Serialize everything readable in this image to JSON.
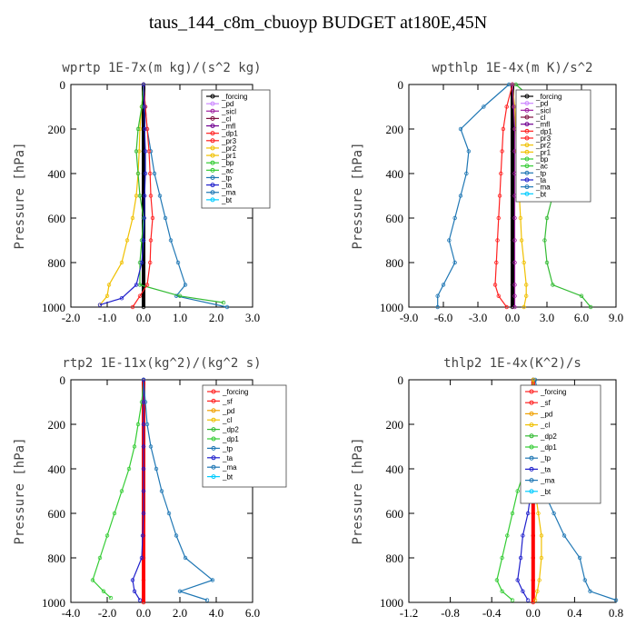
{
  "title": "taus_144_c8m_cbuoyp  BUDGET at180E,45N",
  "chart_data": [
    {
      "type": "line",
      "title": "wprtp  1E-7x(m kg)/(s^2 kg)",
      "ylabel": "Pressure [hPa]",
      "xlim": [
        -2.0,
        3.0
      ],
      "xticks": [
        "-2.0",
        "-1.0",
        "0.0",
        "1.0",
        "2.0",
        "3.0"
      ],
      "ylim": [
        1000,
        0
      ],
      "yticks": [
        "0",
        "200",
        "400",
        "600",
        "800",
        "1000"
      ],
      "legend": [
        "_forcing",
        "_pd",
        "_sicl",
        "_cl",
        "_mfl",
        "_dp1",
        "_pr3",
        "_pr2",
        "_pr1",
        "_bp",
        "_ac",
        "_tp",
        "_ta",
        "_ma",
        "_bt"
      ],
      "series": [
        {
          "name": "_forcing",
          "color": "#000000",
          "x": [
            0,
            0,
            0,
            0,
            0,
            0,
            0,
            0,
            0,
            0,
            0
          ],
          "y": [
            0,
            100,
            200,
            300,
            400,
            500,
            600,
            700,
            800,
            900,
            1000
          ]
        },
        {
          "name": "_pr1",
          "color": "#f0c000",
          "x": [
            0,
            -0.05,
            -0.1,
            -0.12,
            -0.15,
            -0.2,
            -0.3,
            -0.45,
            -0.6,
            -0.95,
            -1.0,
            -1.2
          ],
          "y": [
            0,
            100,
            200,
            300,
            400,
            500,
            600,
            700,
            800,
            900,
            950,
            990
          ]
        },
        {
          "name": "_tp",
          "color": "#1f77b4",
          "x": [
            0,
            0.05,
            0.1,
            0.2,
            0.3,
            0.45,
            0.6,
            0.75,
            0.95,
            1.15,
            0.9,
            2.3
          ],
          "y": [
            0,
            100,
            200,
            300,
            400,
            500,
            600,
            700,
            800,
            900,
            950,
            1000
          ]
        },
        {
          "name": "_ac",
          "color": "#33bb33",
          "x": [
            0,
            -0.05,
            -0.15,
            -0.2,
            -0.15,
            -0.1,
            0,
            -0.05,
            -0.1,
            -0.1,
            1.0,
            2.2
          ],
          "y": [
            0,
            100,
            200,
            300,
            400,
            500,
            600,
            700,
            800,
            900,
            950,
            980
          ]
        },
        {
          "name": "_pr3",
          "color": "#ff2020",
          "x": [
            0,
            0.05,
            0.1,
            0.15,
            0.18,
            0.2,
            0.25,
            0.2,
            0.18,
            0.1,
            -0.1,
            -0.3
          ],
          "y": [
            0,
            100,
            200,
            300,
            400,
            500,
            600,
            700,
            800,
            900,
            950,
            1000
          ]
        },
        {
          "name": "_ta",
          "color": "#2020cc",
          "x": [
            0,
            0.02,
            0.03,
            0.05,
            0.05,
            0.03,
            0.02,
            0,
            -0.05,
            -0.2,
            -0.6,
            -1.2
          ],
          "y": [
            0,
            100,
            200,
            300,
            400,
            500,
            600,
            700,
            800,
            900,
            960,
            990
          ]
        }
      ]
    },
    {
      "type": "line",
      "title": "wpthlp  1E-4x(m K)/s^2",
      "ylabel": "Pressure [hPa]",
      "xlim": [
        -9.0,
        9.0
      ],
      "xticks": [
        "-9.0",
        "-6.0",
        "-3.0",
        "0.0",
        "3.0",
        "6.0",
        "9.0"
      ],
      "ylim": [
        1000,
        0
      ],
      "yticks": [
        "0",
        "200",
        "400",
        "600",
        "800",
        "1000"
      ],
      "legend": [
        "_forcing",
        "_pd",
        "_sicl",
        "_cl",
        "_mfl",
        "_dp1",
        "_pr3",
        "_pr2",
        "_pr1",
        "_bp",
        "_ac",
        "_tp",
        "_ta",
        "_ma",
        "_bt"
      ],
      "series": [
        {
          "name": "_forcing",
          "color": "#000000",
          "x": [
            0,
            0,
            0,
            0,
            0,
            0,
            0,
            0,
            0,
            0,
            0
          ],
          "y": [
            0,
            100,
            200,
            300,
            400,
            500,
            600,
            700,
            800,
            900,
            1000
          ]
        },
        {
          "name": "_tp",
          "color": "#1f77b4",
          "x": [
            -0.3,
            -2.5,
            -4.5,
            -3.8,
            -4.0,
            -4.5,
            -5.0,
            -5.5,
            -5.0,
            -6.0,
            -6.5,
            -6.5
          ],
          "y": [
            0,
            100,
            200,
            300,
            400,
            500,
            600,
            700,
            800,
            900,
            950,
            1000
          ]
        },
        {
          "name": "_ac",
          "color": "#33bb33",
          "x": [
            0.3,
            2.5,
            4.5,
            4.2,
            4.0,
            3.5,
            3.0,
            2.8,
            3.0,
            3.5,
            6.0,
            6.8
          ],
          "y": [
            0,
            100,
            200,
            300,
            400,
            500,
            600,
            700,
            800,
            900,
            950,
            1000
          ]
        },
        {
          "name": "_pr3",
          "color": "#ff2020",
          "x": [
            0,
            -0.5,
            -0.8,
            -0.9,
            -1.0,
            -1.1,
            -1.2,
            -1.3,
            -1.4,
            -1.5,
            -1.2,
            -0.5
          ],
          "y": [
            0,
            100,
            200,
            300,
            400,
            500,
            600,
            700,
            800,
            900,
            950,
            1000
          ]
        },
        {
          "name": "_pr1",
          "color": "#f0c000",
          "x": [
            0,
            0.2,
            0.3,
            0.4,
            0.5,
            0.6,
            0.7,
            0.8,
            1.0,
            1.2,
            1.2,
            1.0
          ],
          "y": [
            0,
            100,
            200,
            300,
            400,
            500,
            600,
            700,
            800,
            900,
            950,
            1000
          ]
        },
        {
          "name": "_sicl",
          "color": "#a020a0",
          "x": [
            0,
            0.1,
            0.2,
            0.2,
            0.2,
            0.2,
            0.2,
            0.2,
            0.2,
            0.2,
            0.2,
            0.2
          ],
          "y": [
            0,
            100,
            200,
            300,
            400,
            500,
            600,
            700,
            800,
            900,
            950,
            1000
          ]
        }
      ]
    },
    {
      "type": "line",
      "title": "rtp2  1E-11x(kg^2)/(kg^2 s)",
      "ylabel": "Pressure [hPa]",
      "xlim": [
        -4.0,
        6.0
      ],
      "xticks": [
        "-4.0",
        "-2.0",
        "0.0",
        "2.0",
        "4.0",
        "6.0"
      ],
      "ylim": [
        1000,
        0
      ],
      "yticks": [
        "0",
        "200",
        "400",
        "600",
        "800",
        "1000"
      ],
      "legend": [
        "_forcing",
        "_sf",
        "_pd",
        "_cl",
        "_dp2",
        "_dp1",
        "_tp",
        "_ta",
        "_ma",
        "_bt"
      ],
      "series": [
        {
          "name": "_forcing",
          "color": "#ff0000",
          "x": [
            0,
            0,
            0,
            0,
            0,
            0,
            0,
            0,
            0,
            0,
            0
          ],
          "y": [
            0,
            100,
            200,
            300,
            400,
            500,
            600,
            700,
            800,
            900,
            1000
          ]
        },
        {
          "name": "_dp1",
          "color": "#33cc33",
          "x": [
            0,
            -0.1,
            -0.3,
            -0.5,
            -0.8,
            -1.2,
            -1.6,
            -2.0,
            -2.4,
            -2.8,
            -2.2,
            -1.8
          ],
          "y": [
            0,
            100,
            200,
            300,
            400,
            500,
            600,
            700,
            800,
            900,
            950,
            980
          ]
        },
        {
          "name": "_tp",
          "color": "#1f77b4",
          "x": [
            0,
            0.1,
            0.2,
            0.4,
            0.7,
            1.0,
            1.4,
            1.8,
            2.3,
            3.8,
            2.0,
            3.5
          ],
          "y": [
            0,
            100,
            200,
            300,
            400,
            500,
            600,
            700,
            800,
            900,
            950,
            990
          ]
        },
        {
          "name": "_ta",
          "color": "#2020cc",
          "x": [
            0,
            0,
            0,
            0,
            0,
            0,
            0,
            -0.05,
            -0.1,
            -0.6,
            -0.5,
            -0.2
          ],
          "y": [
            0,
            100,
            200,
            300,
            400,
            500,
            600,
            700,
            800,
            900,
            950,
            990
          ]
        }
      ]
    },
    {
      "type": "line",
      "title": "thlp2  1E-4x(K^2)/s",
      "ylabel": "Pressure [hPa]",
      "xlim": [
        -1.2,
        0.8
      ],
      "xticks": [
        "-1.2",
        "-0.8",
        "-0.4",
        "0.0",
        "0.4",
        "0.8"
      ],
      "ylim": [
        1000,
        0
      ],
      "yticks": [
        "0",
        "200",
        "400",
        "600",
        "800",
        "1000"
      ],
      "legend": [
        "_forcing",
        "_sf",
        "_pd",
        "_cl",
        "_dp2",
        "_dp1",
        "_tp",
        "_ta",
        "_ma",
        "_bt"
      ],
      "series": [
        {
          "name": "_forcing",
          "color": "#ff0000",
          "x": [
            0,
            0,
            0,
            0,
            0,
            0,
            0,
            0,
            0,
            0,
            0
          ],
          "y": [
            0,
            100,
            200,
            300,
            400,
            500,
            600,
            700,
            800,
            900,
            1000
          ]
        },
        {
          "name": "_dp1",
          "color": "#33cc33",
          "x": [
            0,
            -0.02,
            -0.1,
            -0.06,
            -0.08,
            -0.15,
            -0.2,
            -0.25,
            -0.3,
            -0.35,
            -0.3,
            -0.2
          ],
          "y": [
            0,
            100,
            200,
            300,
            400,
            500,
            600,
            700,
            800,
            900,
            950,
            990
          ]
        },
        {
          "name": "_tp",
          "color": "#1f77b4",
          "x": [
            0.02,
            0.06,
            0.08,
            0.05,
            0.06,
            0.1,
            0.2,
            0.3,
            0.45,
            0.5,
            0.55,
            0.8
          ],
          "y": [
            0,
            100,
            200,
            300,
            400,
            500,
            600,
            700,
            800,
            900,
            950,
            990
          ]
        },
        {
          "name": "_ta",
          "color": "#2020cc",
          "x": [
            0,
            0,
            0,
            0,
            0,
            -0.02,
            -0.05,
            -0.1,
            -0.12,
            -0.15,
            -0.1,
            -0.05
          ],
          "y": [
            0,
            100,
            200,
            300,
            400,
            500,
            600,
            700,
            800,
            900,
            950,
            990
          ]
        },
        {
          "name": "_cl",
          "color": "#f0c000",
          "x": [
            0,
            0,
            0,
            0,
            0,
            0.02,
            0.05,
            0.08,
            0.08,
            0.06,
            0.04,
            0.02
          ],
          "y": [
            0,
            100,
            200,
            300,
            400,
            500,
            600,
            700,
            800,
            900,
            950,
            990
          ]
        }
      ]
    }
  ]
}
